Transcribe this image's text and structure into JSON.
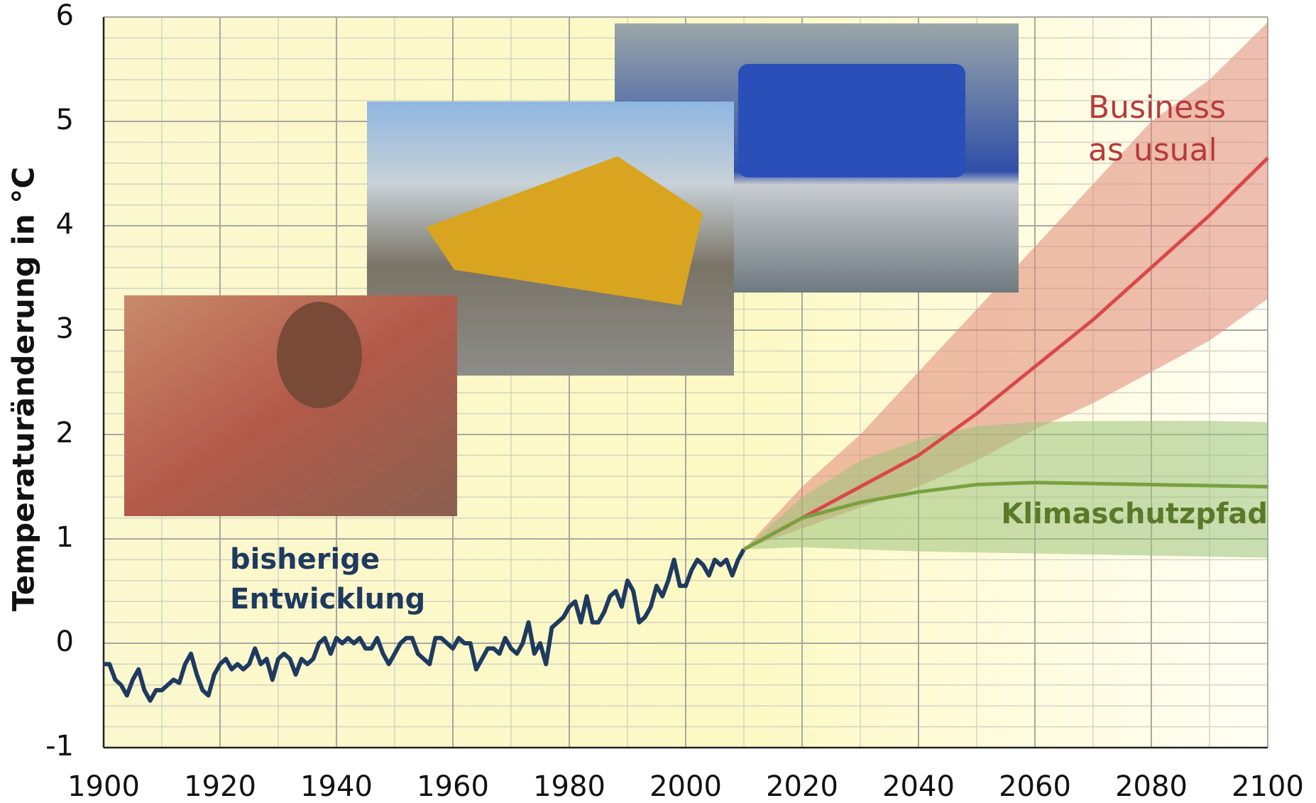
{
  "chart_data": {
    "type": "line",
    "ylabel": "Temperaturänderung in °C",
    "xlim": [
      1900,
      2100
    ],
    "xticks": [
      1900,
      1920,
      1940,
      1960,
      1980,
      2000,
      2020,
      2040,
      2060,
      2080,
      2100
    ],
    "ylim": [
      -1,
      6
    ],
    "yticks": [
      -1,
      0,
      1,
      2,
      3,
      4,
      5,
      6
    ],
    "grid": true,
    "series": [
      {
        "label": [
          "bisherige",
          "Entwicklung"
        ],
        "color": "#1f3a5f",
        "x": [
          1900,
          1901,
          1902,
          1903,
          1904,
          1905,
          1906,
          1907,
          1908,
          1909,
          1910,
          1911,
          1912,
          1913,
          1914,
          1915,
          1916,
          1917,
          1918,
          1919,
          1920,
          1921,
          1922,
          1923,
          1924,
          1925,
          1926,
          1927,
          1928,
          1929,
          1930,
          1931,
          1932,
          1933,
          1934,
          1935,
          1936,
          1937,
          1938,
          1939,
          1940,
          1941,
          1942,
          1943,
          1944,
          1945,
          1946,
          1947,
          1948,
          1949,
          1950,
          1951,
          1952,
          1953,
          1954,
          1955,
          1956,
          1957,
          1958,
          1959,
          1960,
          1961,
          1962,
          1963,
          1964,
          1965,
          1966,
          1967,
          1968,
          1969,
          1970,
          1971,
          1972,
          1973,
          1974,
          1975,
          1976,
          1977,
          1978,
          1979,
          1980,
          1981,
          1982,
          1983,
          1984,
          1985,
          1986,
          1987,
          1988,
          1989,
          1990,
          1991,
          1992,
          1993,
          1994,
          1995,
          1996,
          1997,
          1998,
          1999,
          2000,
          2001,
          2002,
          2003,
          2004,
          2005,
          2006,
          2007,
          2008,
          2009,
          2010
        ],
        "values": [
          -0.2,
          -0.2,
          -0.35,
          -0.4,
          -0.5,
          -0.35,
          -0.25,
          -0.45,
          -0.55,
          -0.45,
          -0.45,
          -0.4,
          -0.35,
          -0.38,
          -0.2,
          -0.1,
          -0.3,
          -0.45,
          -0.5,
          -0.3,
          -0.2,
          -0.15,
          -0.25,
          -0.2,
          -0.25,
          -0.2,
          -0.05,
          -0.2,
          -0.15,
          -0.35,
          -0.15,
          -0.1,
          -0.15,
          -0.3,
          -0.15,
          -0.2,
          -0.15,
          0.0,
          0.05,
          -0.1,
          0.05,
          0.0,
          0.05,
          0.0,
          0.05,
          -0.05,
          -0.05,
          0.05,
          -0.1,
          -0.2,
          -0.1,
          0.0,
          0.05,
          0.05,
          -0.1,
          -0.15,
          -0.2,
          0.05,
          0.05,
          0.0,
          -0.05,
          0.05,
          0.0,
          0.0,
          -0.25,
          -0.15,
          -0.05,
          -0.05,
          -0.1,
          0.05,
          -0.05,
          -0.1,
          0.0,
          0.2,
          -0.1,
          0.0,
          -0.2,
          0.15,
          0.2,
          0.25,
          0.35,
          0.4,
          0.2,
          0.45,
          0.2,
          0.2,
          0.3,
          0.45,
          0.5,
          0.35,
          0.6,
          0.5,
          0.2,
          0.25,
          0.35,
          0.55,
          0.45,
          0.6,
          0.8,
          0.55,
          0.55,
          0.7,
          0.8,
          0.75,
          0.65,
          0.8,
          0.75,
          0.8,
          0.65,
          0.8,
          0.9
        ]
      },
      {
        "label": [
          "Business",
          "as usual"
        ],
        "color": "#d9484a",
        "band_color": "#e08878",
        "x": [
          2010,
          2020,
          2030,
          2040,
          2050,
          2060,
          2070,
          2080,
          2090,
          2100
        ],
        "values": [
          0.9,
          1.2,
          1.5,
          1.8,
          2.2,
          2.65,
          3.1,
          3.6,
          4.1,
          4.65
        ],
        "upper": [
          0.9,
          1.5,
          2.0,
          2.6,
          3.2,
          3.8,
          4.4,
          5.0,
          5.4,
          5.95
        ],
        "lower": [
          0.9,
          1.1,
          1.3,
          1.5,
          1.75,
          2.05,
          2.3,
          2.6,
          2.9,
          3.3
        ]
      },
      {
        "label": [
          "Klimaschutzpfad"
        ],
        "color": "#7aa040",
        "band_color": "#9cc27a",
        "x": [
          2010,
          2020,
          2030,
          2040,
          2050,
          2060,
          2070,
          2080,
          2090,
          2100
        ],
        "values": [
          0.9,
          1.2,
          1.35,
          1.45,
          1.52,
          1.54,
          1.53,
          1.52,
          1.51,
          1.5
        ],
        "upper": [
          0.9,
          1.4,
          1.75,
          1.95,
          2.08,
          2.12,
          2.13,
          2.13,
          2.13,
          2.12
        ],
        "lower": [
          0.9,
          0.92,
          0.9,
          0.88,
          0.87,
          0.86,
          0.85,
          0.84,
          0.83,
          0.82
        ]
      }
    ]
  }
}
